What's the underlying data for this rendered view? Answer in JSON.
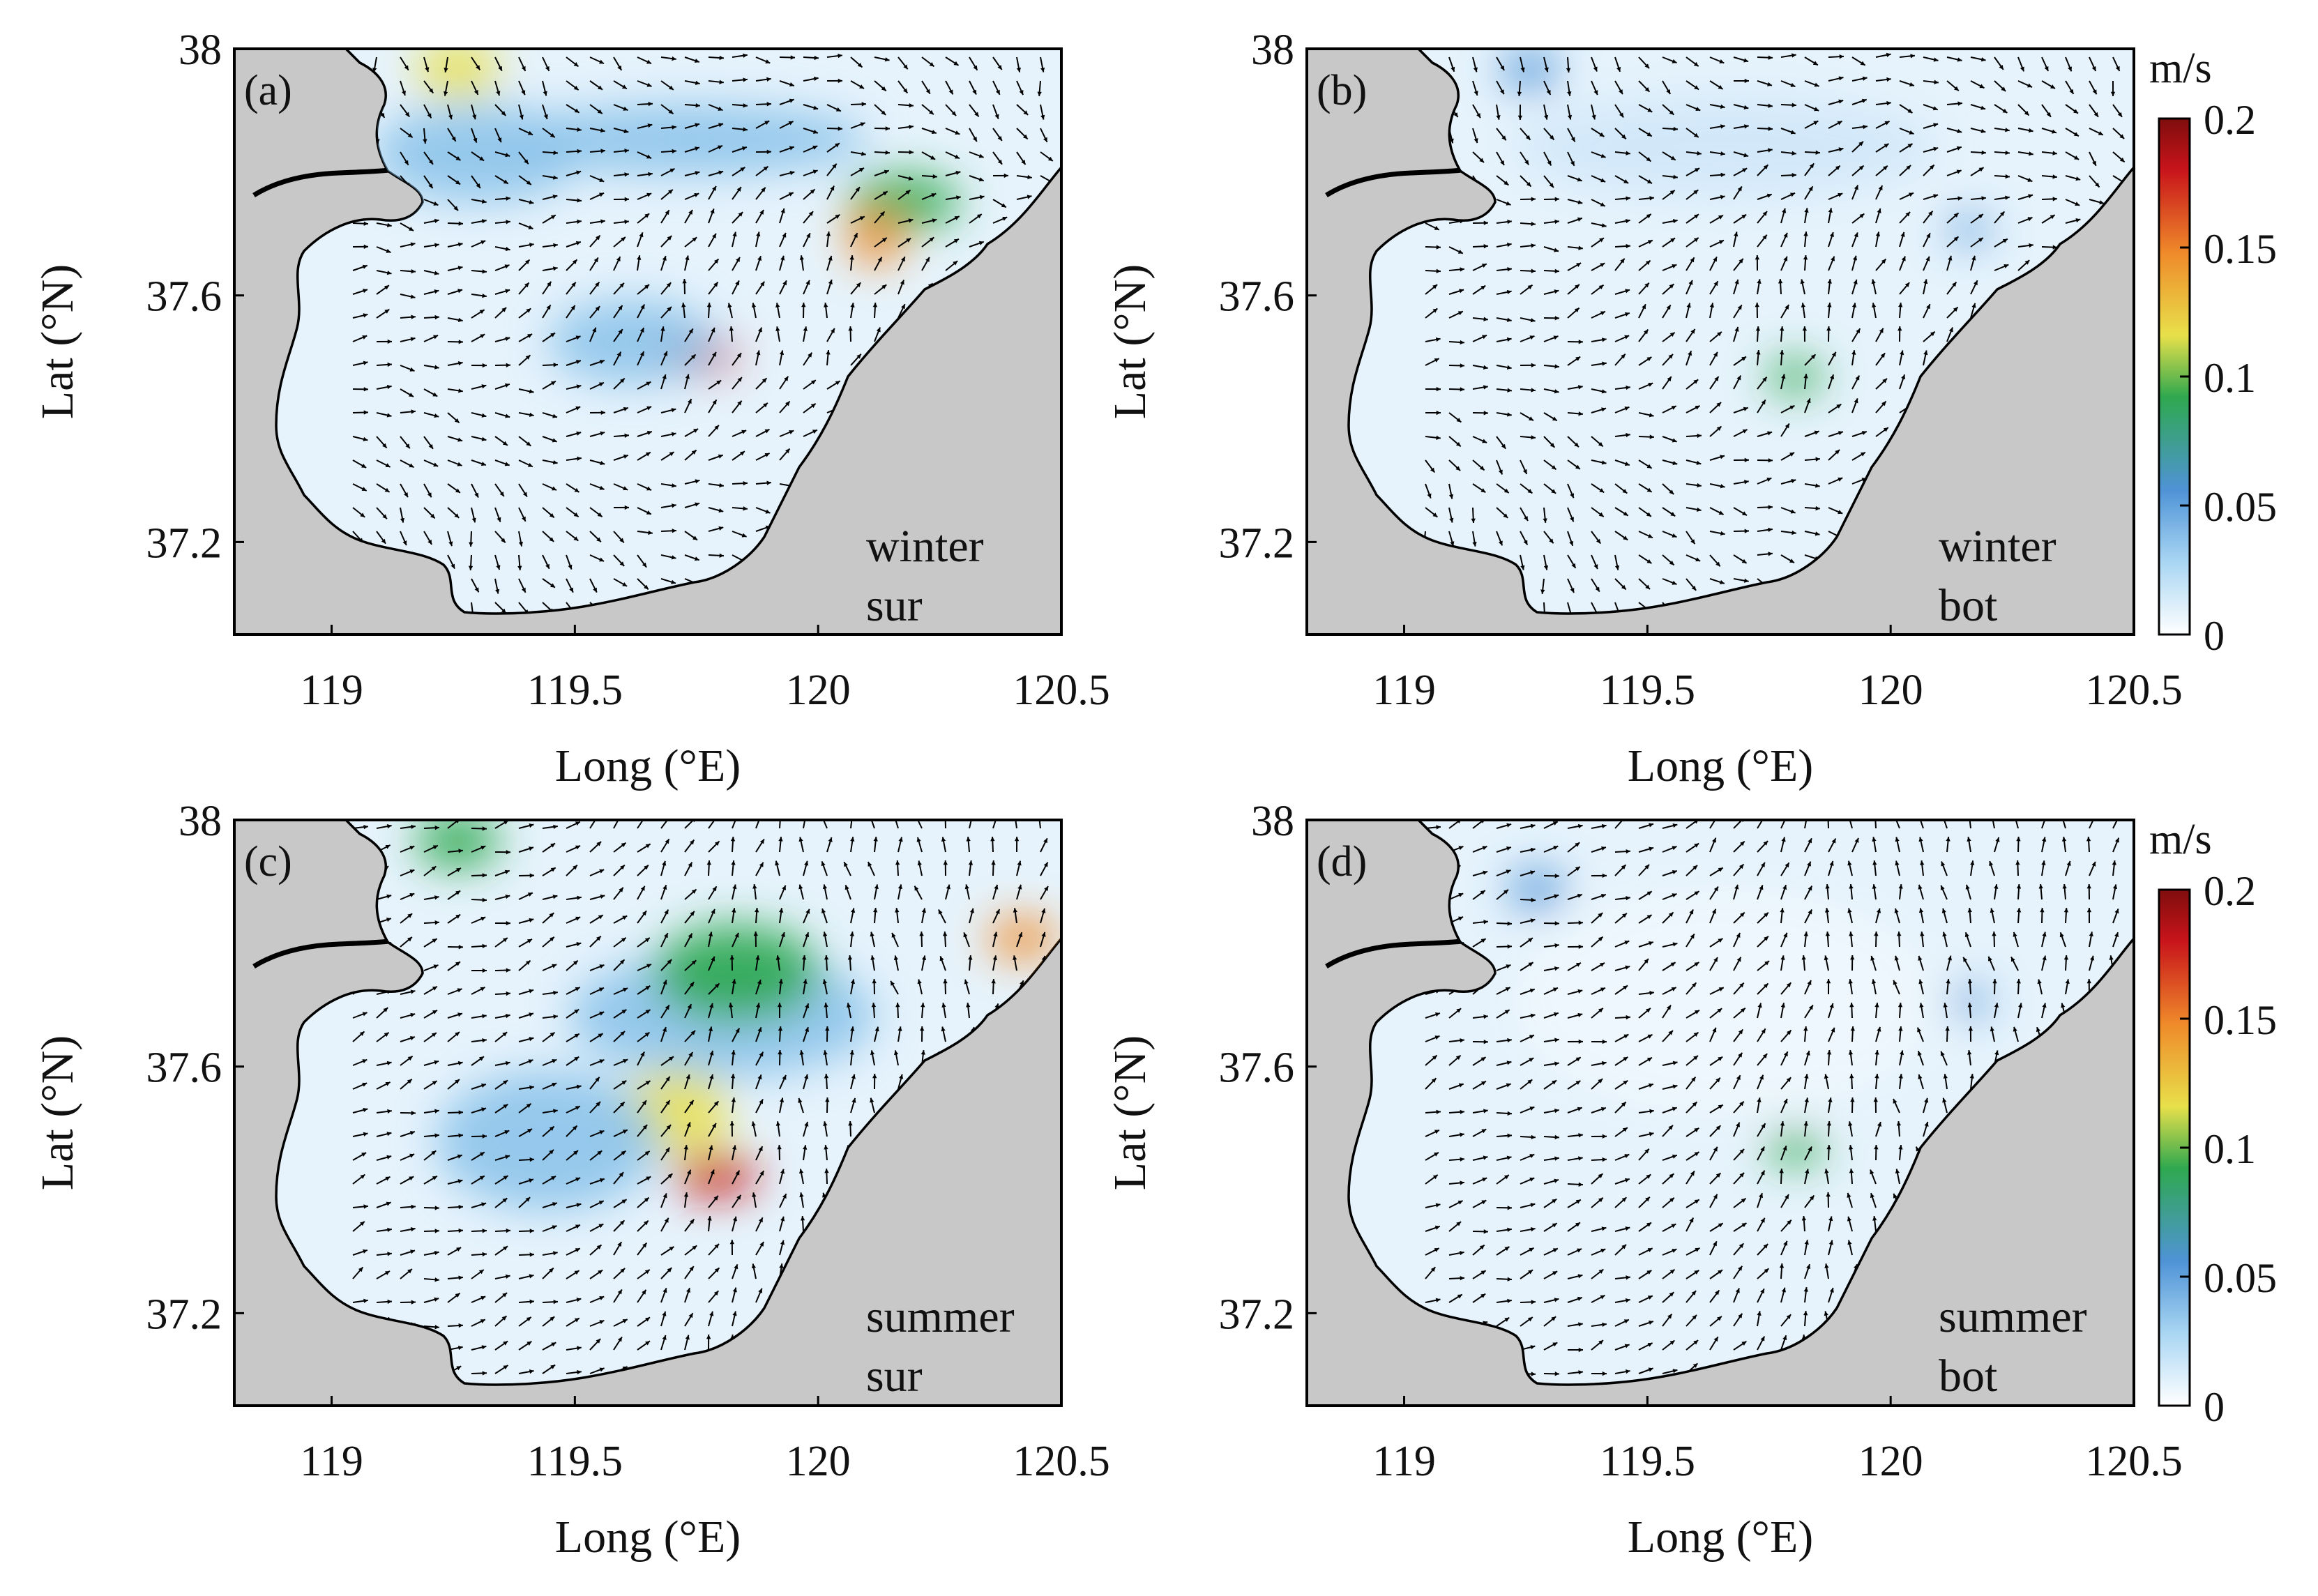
{
  "figure": {
    "x_axis_label": "Long (°E)",
    "y_axis_label": "Lat (°N)",
    "x_ticks": [
      "119",
      "119.5",
      "120",
      "120.5"
    ],
    "y_ticks": [
      "37.2",
      "37.6",
      "38"
    ],
    "x_range": [
      118.8,
      120.5
    ],
    "y_range": [
      37.05,
      38.0
    ]
  },
  "colorbar": {
    "unit": "m/s",
    "ticks": [
      "0",
      "0.05",
      "0.1",
      "0.15",
      "0.2"
    ],
    "range": [
      0,
      0.2
    ],
    "colors": [
      "#ffffff",
      "#a9d6f3",
      "#4f93d6",
      "#2fa84f",
      "#e8e04a",
      "#ef8a2a",
      "#c8141b",
      "#7e0d0d"
    ]
  },
  "colors": {
    "land": "#c8c8c8",
    "water_base": "#e6f3fc",
    "water_mid": "#8cc3ea",
    "coast": "#000000"
  },
  "panels": [
    {
      "id": "a",
      "label": "(a)",
      "season": "winter",
      "layer": "sur"
    },
    {
      "id": "b",
      "label": "(b)",
      "season": "winter",
      "layer": "bot"
    },
    {
      "id": "c",
      "label": "(c)",
      "season": "summer",
      "layer": "sur"
    },
    {
      "id": "d",
      "label": "(d)",
      "season": "summer",
      "layer": "bot"
    }
  ]
}
